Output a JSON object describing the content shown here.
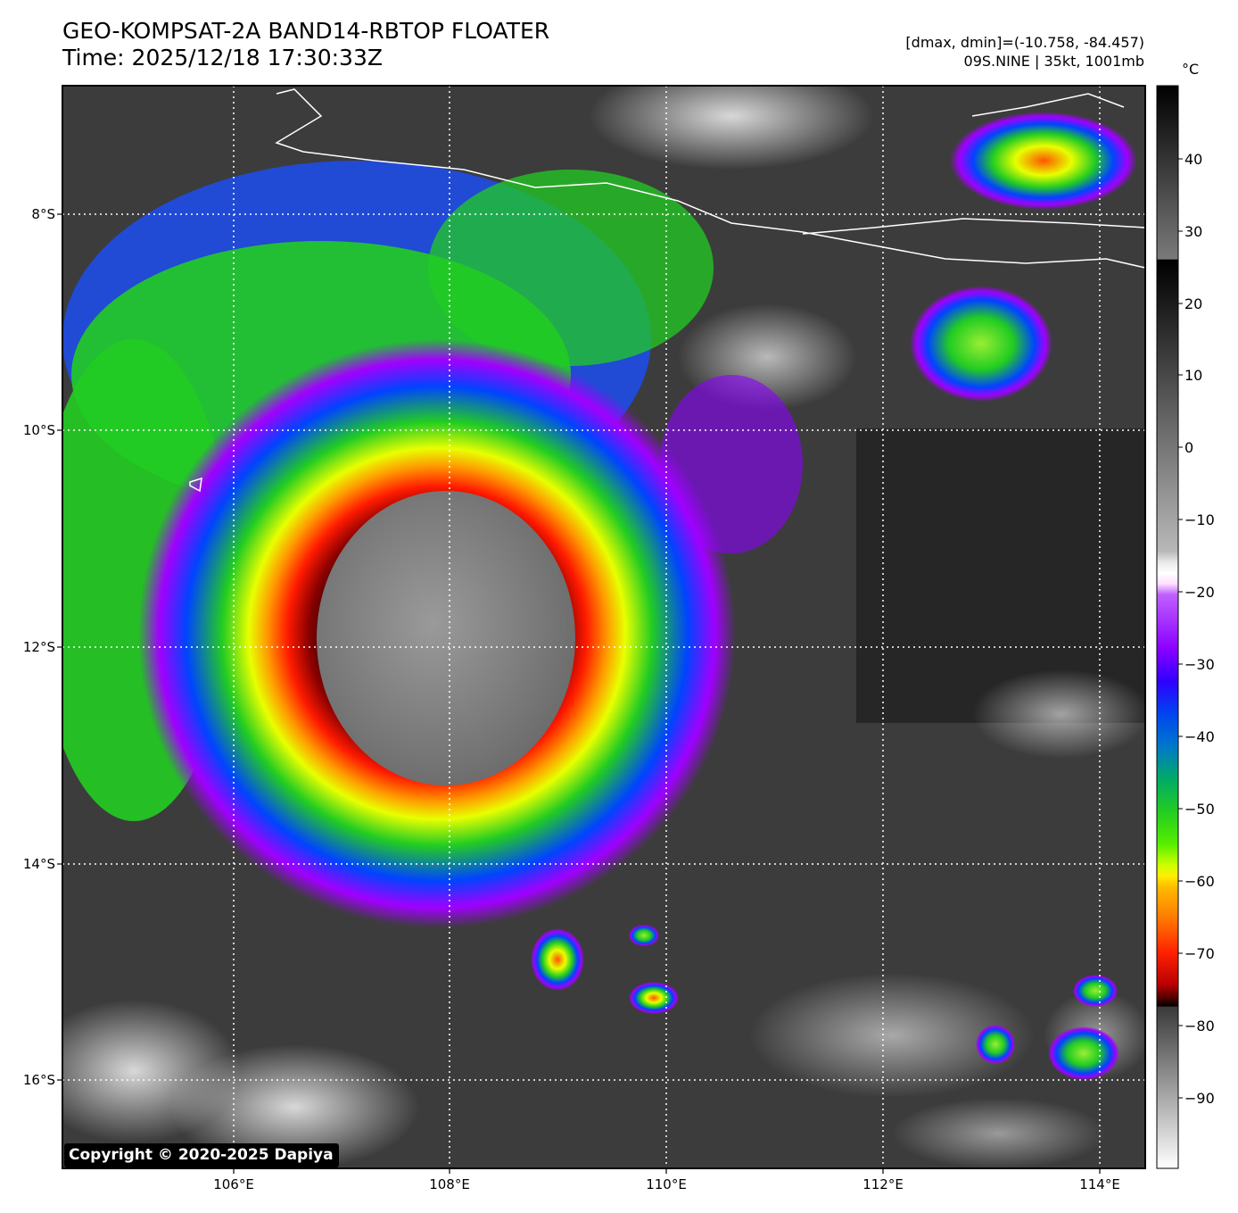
{
  "header": {
    "title": "GEO-KOMPSAT-2A BAND14-RBTOP FLOATER",
    "time": "Time: 2025/12/18 17:30:33Z",
    "range_text": "[dmax, dmin]=(-10.758, -84.457)",
    "storm_text": "09S.NINE | 35kt, 1001mb"
  },
  "map": {
    "lon_labels": [
      "106°E",
      "108°E",
      "110°E",
      "112°E",
      "114°E"
    ],
    "lat_labels": [
      "8°S",
      "10°S",
      "12°S",
      "14°S",
      "16°S"
    ],
    "storm_center_brightness_temp_c": -80,
    "coastline_color": "#ffffff",
    "gridline_style": "dotted-white"
  },
  "colorbar": {
    "unit": "°C",
    "ticks": [
      "40",
      "30",
      "20",
      "10",
      "0",
      "−10",
      "−20",
      "−30",
      "−40",
      "−50",
      "−60",
      "−70",
      "−80",
      "−90"
    ],
    "range": [
      -100,
      50
    ],
    "colors": {
      "warm": "#3a3a3a",
      "purple": "#a000ff",
      "blue": "#0033ff",
      "green": "#22cc22",
      "yellow": "#e8ff00",
      "orange": "#ff8800",
      "red": "#ff1100",
      "dark_red": "#3a0000",
      "cold_core": "#777777"
    }
  },
  "footer": {
    "copyright": "Copyright © 2020-2025 Dapiya"
  }
}
